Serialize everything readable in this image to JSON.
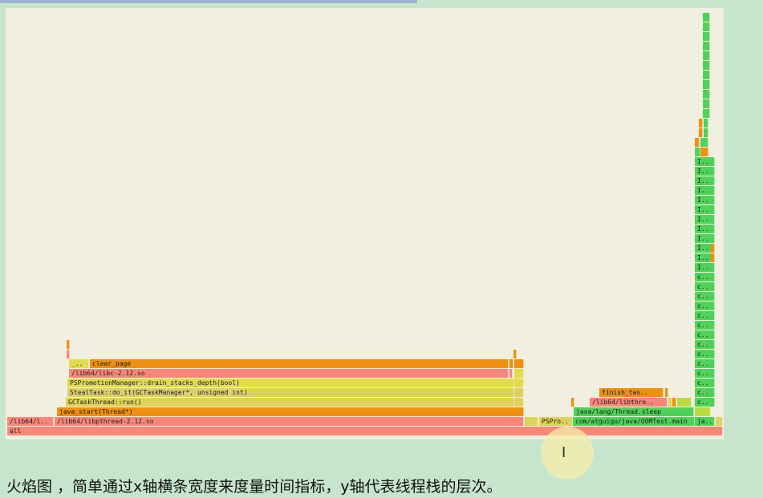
{
  "colors": {
    "background": "#c7e5cd",
    "panel": "#f1efe0",
    "red": "#f8877a",
    "orange": "#f0900f",
    "yellow": "#e0dc4c",
    "olive": "#ddd35c",
    "lime": "#b9dd3f",
    "green": "#4fd25a"
  },
  "flamegraph": {
    "frames": [
      {
        "label": "all",
        "color": "red"
      },
      {
        "label": "/lib64/l..",
        "color": "red"
      },
      {
        "label": "/lib64/libpthread-2.12.so",
        "color": "red"
      },
      {
        "label": "PSPro..",
        "color": "olive"
      },
      {
        "label": "com/atguigu/java/OOMTest.main",
        "color": "green"
      },
      {
        "label": "ja..",
        "color": "green"
      },
      {
        "label": "java_start(Thread*)",
        "color": "orange"
      },
      {
        "label": "java/lang/Thread.sleep",
        "color": "green"
      },
      {
        "label": "GCTaskThread::run()",
        "color": "olive"
      },
      {
        "label": "/lib64/libthre..",
        "color": "red"
      },
      {
        "label": "StealTask::do_it(GCTaskManager*, unsigned int)",
        "color": "olive"
      },
      {
        "label": "finish_tas..",
        "color": "orange"
      },
      {
        "label": "PSPromotionManager::drain_stacks_depth(bool)",
        "color": "yellow"
      },
      {
        "label": "/lib64/libc-2.12.so",
        "color": "red"
      },
      {
        "label": "_..",
        "color": "orange"
      },
      {
        "label": "clear_page",
        "color": "orange"
      },
      {
        "label": "c..",
        "color": "green"
      },
      {
        "label": "I..",
        "color": "green"
      }
    ]
  },
  "caption": "火焰图 ，简单通过x轴横条宽度来度量时间指标，y轴代表线程栈的层次。"
}
